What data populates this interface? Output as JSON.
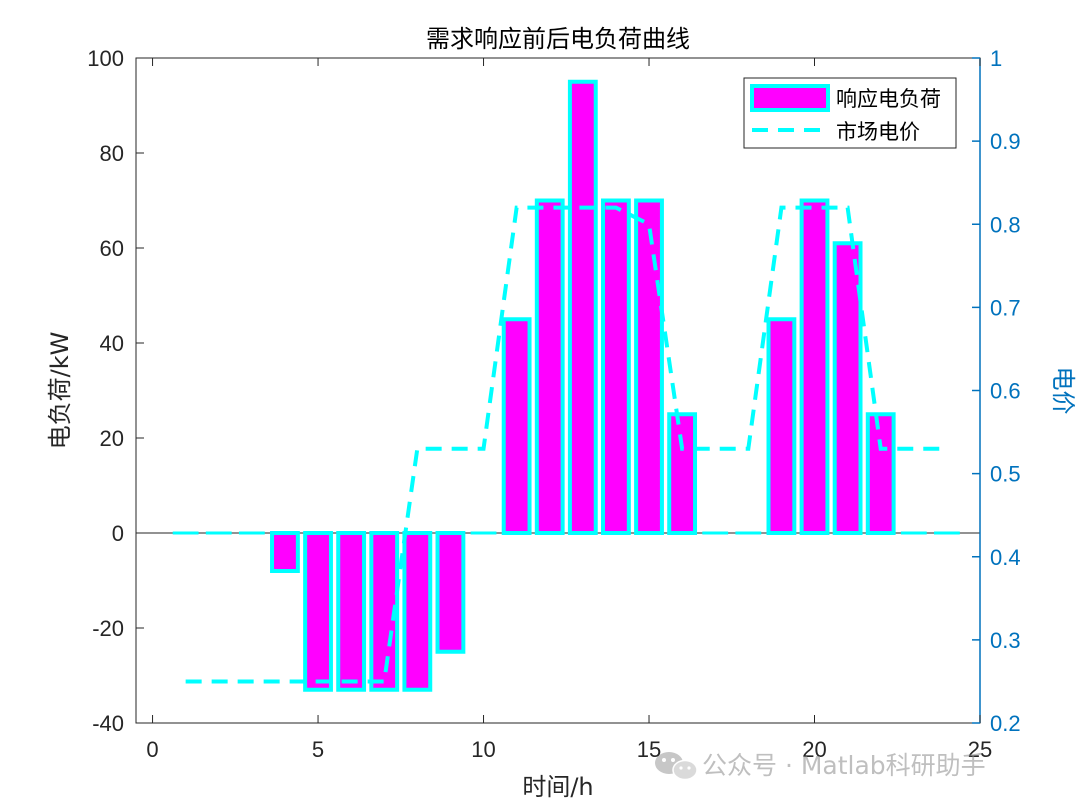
{
  "chart_data": {
    "type": "bar",
    "title": "需求响应前后电负荷曲线",
    "xlabel": "时间/h",
    "ylabel": "电负荷/kW",
    "y2label": "电价",
    "xlim": [
      -0.5,
      25
    ],
    "ylim": [
      -40,
      100
    ],
    "y2lim": [
      0.2,
      1
    ],
    "xticks": [
      "0",
      "5",
      "10",
      "15",
      "20",
      "25"
    ],
    "yticks": [
      "-40",
      "-20",
      "0",
      "20",
      "40",
      "60",
      "80",
      "100"
    ],
    "y2ticks": [
      "0.2",
      "0.3",
      "0.4",
      "0.5",
      "0.6",
      "0.7",
      "0.8",
      "0.9",
      "1"
    ],
    "x": [
      1,
      2,
      3,
      4,
      5,
      6,
      7,
      8,
      9,
      10,
      11,
      12,
      13,
      14,
      15,
      16,
      17,
      18,
      19,
      20,
      21,
      22,
      23,
      24
    ],
    "series": [
      {
        "name": "响应电负荷",
        "axis": "left",
        "style": "bar",
        "values": [
          0,
          0,
          0,
          -8,
          -33,
          -33,
          -33,
          -33,
          -25,
          0,
          45,
          70,
          95,
          70,
          70,
          25,
          0,
          0,
          45,
          70,
          61,
          25,
          0,
          0
        ]
      },
      {
        "name": "市场电价",
        "axis": "right",
        "style": "dashed-line",
        "values": [
          0.25,
          0.25,
          0.25,
          0.25,
          0.25,
          0.25,
          0.25,
          0.53,
          0.53,
          0.53,
          0.82,
          0.82,
          0.82,
          0.82,
          0.8,
          0.53,
          0.53,
          0.53,
          0.82,
          0.82,
          0.82,
          0.53,
          0.53,
          0.53
        ]
      }
    ],
    "legend_position": "top-right",
    "colors": {
      "bar_fill": "#ff00ff",
      "bar_edge": "#00ffff",
      "line": "#00ffff",
      "right_axis": "#0072bd",
      "axis": "#262626"
    }
  },
  "watermark": {
    "text": "公众号 · Matlab科研助手"
  }
}
